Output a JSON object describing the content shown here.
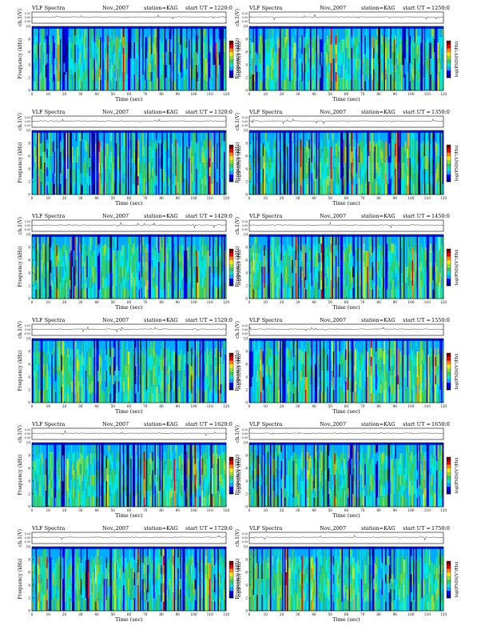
{
  "common": {
    "title": "VLF Spectra",
    "date": "Nov.,2007",
    "station": "station=KAG",
    "start_prefix": "start  UT =",
    "xlabel": "Time  (sec)",
    "ylabel": "Frequency (kHz)",
    "ch_label": "ch.1(V)",
    "cb_label": "log(PSD)(V²/Hz)"
  },
  "chart_data": {
    "type": "heatmap",
    "x_ticks": [
      0,
      10,
      20,
      30,
      40,
      50,
      60,
      70,
      80,
      90,
      100,
      110,
      120
    ],
    "y_ticks": [
      0,
      2,
      4,
      6,
      8,
      10
    ],
    "xlim": [
      0,
      120
    ],
    "ylim": [
      0,
      10
    ],
    "waveform_ticks": [
      "0.20",
      "0.00",
      "-0.50"
    ],
    "panels": [
      {
        "start_ut": "1220:0"
      },
      {
        "start_ut": "1250:0"
      },
      {
        "start_ut": "1320:0"
      },
      {
        "start_ut": "1350:0"
      },
      {
        "start_ut": "1420:0"
      },
      {
        "start_ut": "1450:0"
      },
      {
        "start_ut": "1520:0"
      },
      {
        "start_ut": "1550:0"
      },
      {
        "start_ut": "1620:0"
      },
      {
        "start_ut": "1650:0"
      },
      {
        "start_ut": "1720:0"
      },
      {
        "start_ut": "1750:0"
      }
    ]
  },
  "colors": {
    "colormap": [
      "#00008b",
      "#0000ff",
      "#00aaff",
      "#00e5e5",
      "#33cc66",
      "#99dd33",
      "#ffee00",
      "#ff8800",
      "#ee0000",
      "#800000"
    ]
  }
}
